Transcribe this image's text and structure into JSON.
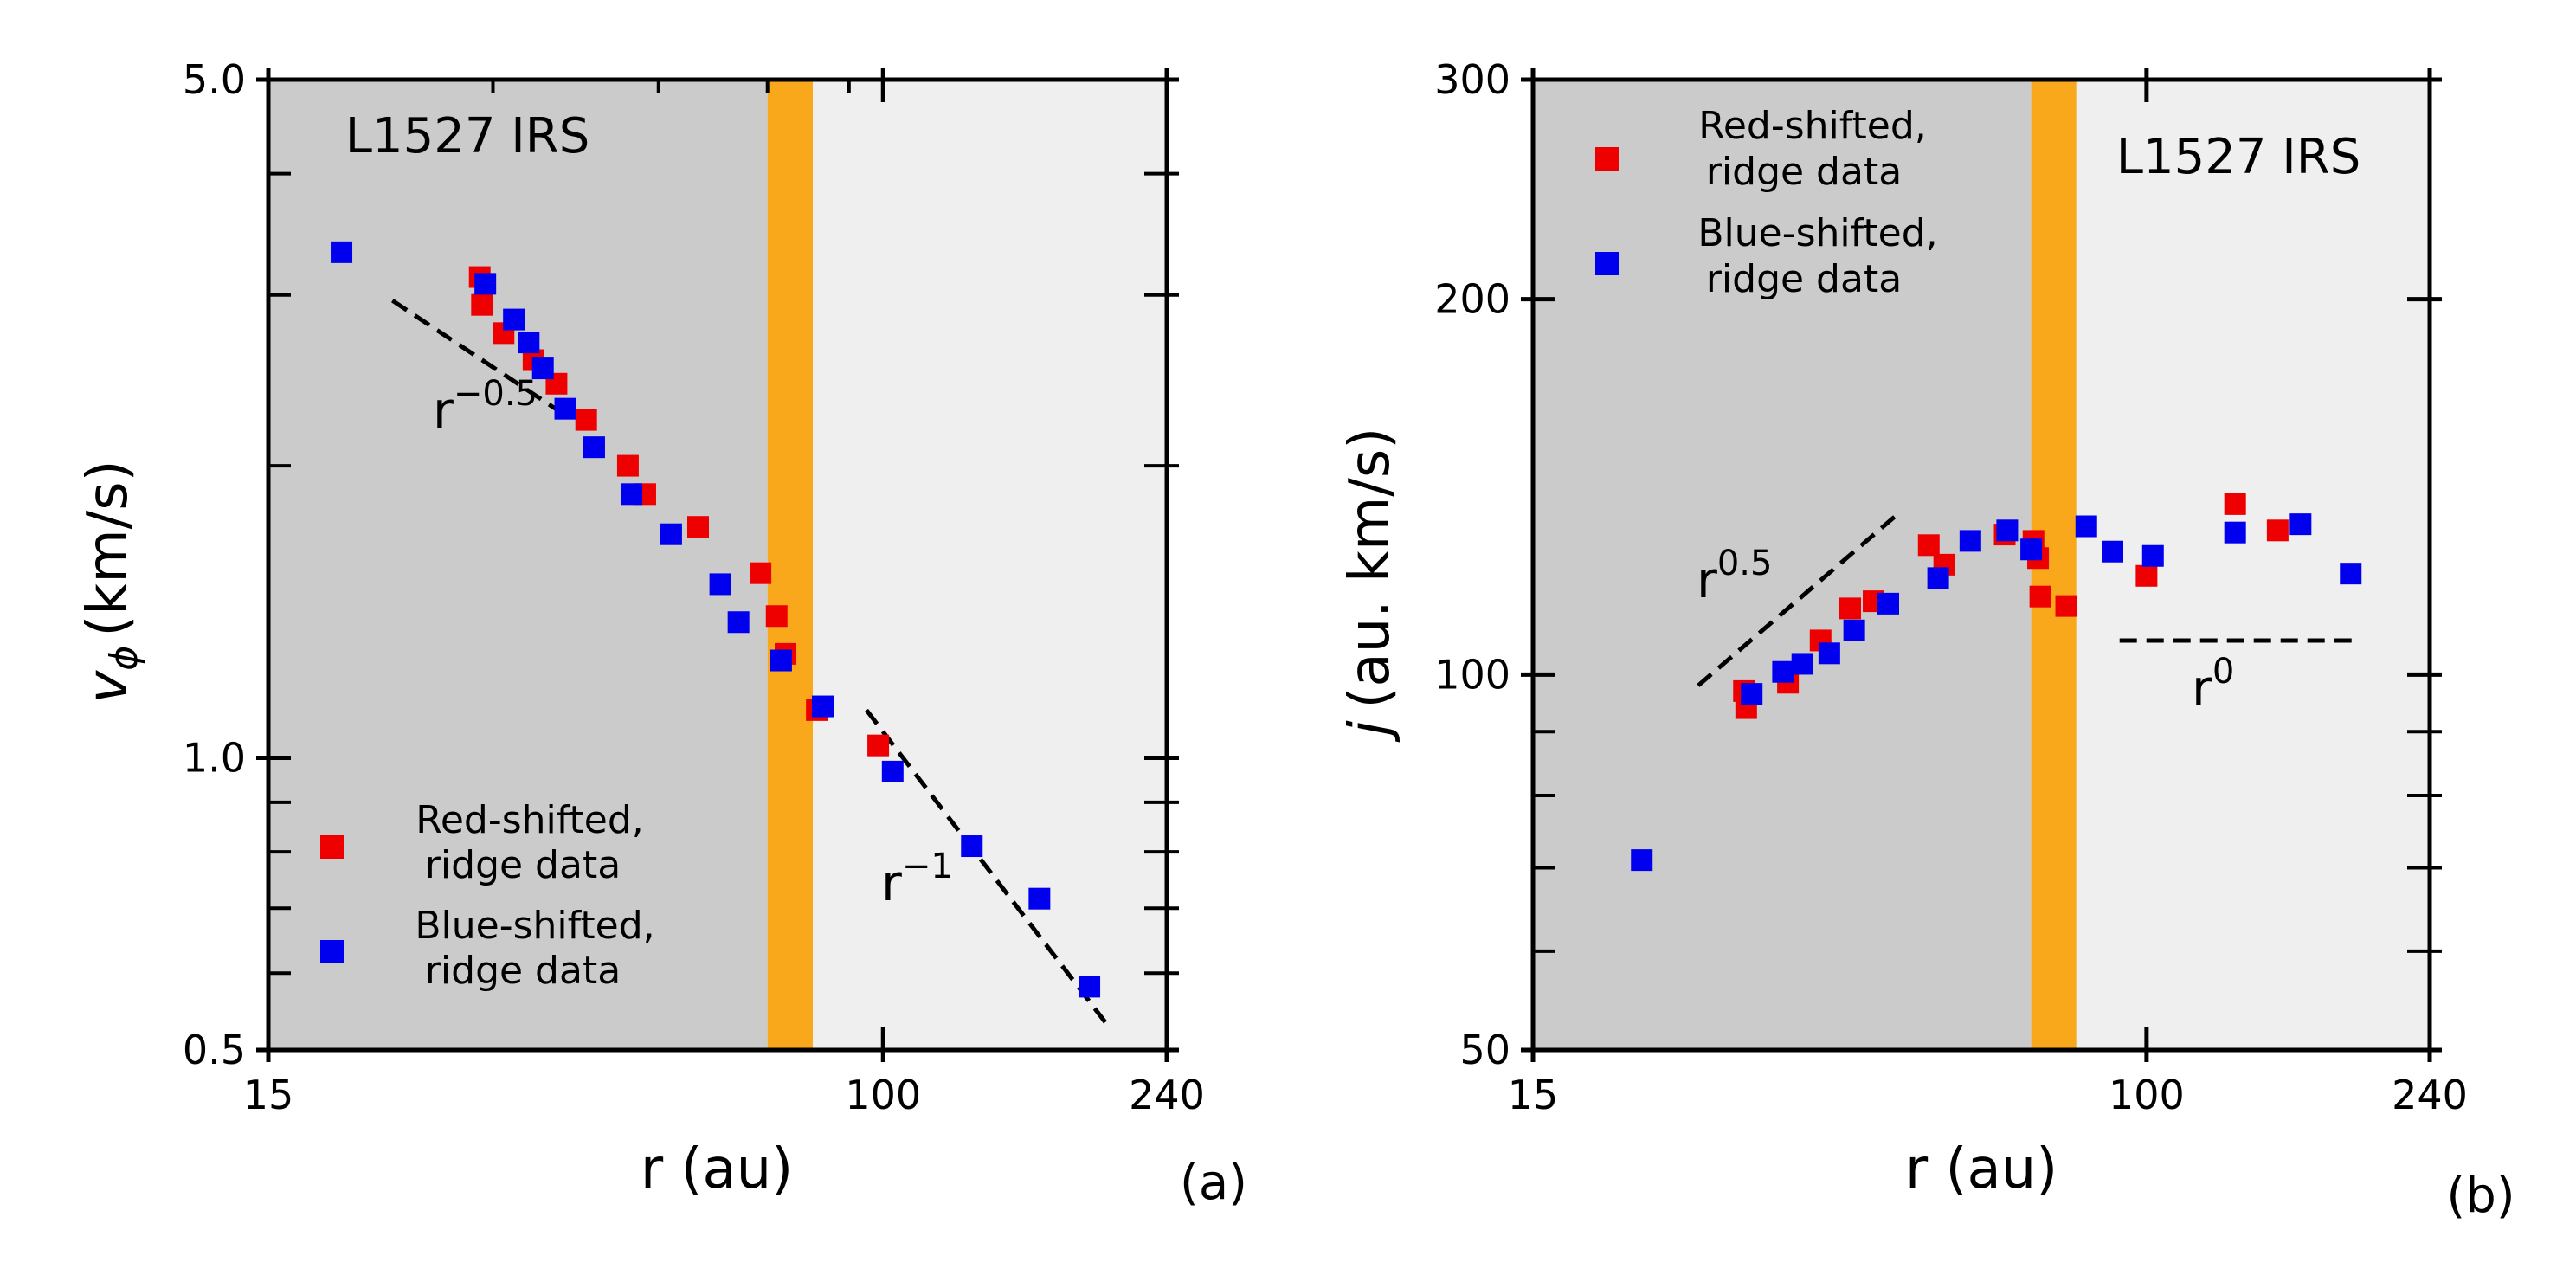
{
  "chart_data": [
    {
      "type": "scatter",
      "panel_label": "(a)",
      "region_label": "L1527 IRS",
      "xlabel": "r (au)",
      "ylabel_symbol": "v",
      "ylabel_sub": "ϕ",
      "ylabel_unit": "(km/s)",
      "xscale": "log",
      "yscale": "log",
      "xlim": [
        15,
        240
      ],
      "ylim": [
        0.5,
        5.0
      ],
      "xticks": [
        {
          "value": 15,
          "label": "15"
        },
        {
          "value": 100,
          "label": "100"
        },
        {
          "value": 240,
          "label": "240"
        }
      ],
      "yticks": [
        {
          "value": 0.5,
          "label": "0.5"
        },
        {
          "value": 1.0,
          "label": "1.0"
        },
        {
          "value": 5.0,
          "label": "5.0"
        }
      ],
      "yminor": [
        0.6,
        0.7,
        0.8,
        0.9,
        2,
        3,
        4
      ],
      "xminor_top": [
        30,
        50,
        70,
        90
      ],
      "shaded_regions": [
        {
          "from": 15,
          "to": 70,
          "color": "#cbcbcb"
        },
        {
          "from": 70,
          "to": 80.5,
          "color": "#f9a81c"
        },
        {
          "from": 80.5,
          "to": 240,
          "color": "#efefef"
        }
      ],
      "legend": {
        "position": "lower-left",
        "entries": [
          {
            "label_line1": "Red-shifted,",
            "label_line2": "ridge data",
            "color": "#ee0000"
          },
          {
            "label_line1": "Blue-shifted,",
            "label_line2": "ridge data",
            "color": "#0000ee"
          }
        ]
      },
      "series": [
        {
          "name": "Red-shifted, ridge data",
          "color": "#ee0000",
          "x": [
            28.8,
            29.0,
            31.0,
            34.0,
            36.5,
            40.0,
            45.5,
            48.0,
            56.5,
            68.5,
            72.0,
            74.0,
            81.5,
            98.5
          ],
          "y": [
            3.13,
            2.93,
            2.74,
            2.57,
            2.43,
            2.23,
            2.0,
            1.87,
            1.73,
            1.55,
            1.4,
            1.28,
            1.12,
            1.03
          ]
        },
        {
          "name": "Blue-shifted, ridge data",
          "color": "#0000ee",
          "x": [
            18.8,
            29.3,
            32.0,
            33.5,
            35.0,
            37.5,
            41.0,
            46.0,
            52.0,
            60.5,
            64.0,
            73.0,
            83.0,
            103.0,
            131.5,
            162.0,
            189.0
          ],
          "y": [
            3.32,
            3.08,
            2.83,
            2.68,
            2.52,
            2.29,
            2.09,
            1.87,
            1.7,
            1.51,
            1.38,
            1.26,
            1.13,
            0.968,
            0.811,
            0.716,
            0.581
          ]
        }
      ],
      "reference_lines": [
        {
          "label": "r",
          "exponent": "−0.5",
          "points": [
            [
              22,
              2.96
            ],
            [
              38,
              2.24
            ]
          ]
        },
        {
          "label": "r",
          "exponent": "−1",
          "points": [
            [
              95,
              1.12
            ],
            [
              200,
              0.53
            ]
          ]
        }
      ]
    },
    {
      "type": "scatter",
      "panel_label": "(b)",
      "region_label": "L1527 IRS",
      "xlabel": "r (au)",
      "ylabel_symbol": "j",
      "ylabel_unit": "(au. km/s)",
      "xscale": "log",
      "yscale": "log",
      "xlim": [
        15,
        240
      ],
      "ylim": [
        50,
        300
      ],
      "xticks": [
        {
          "value": 15,
          "label": "15"
        },
        {
          "value": 100,
          "label": "100"
        },
        {
          "value": 240,
          "label": "240"
        }
      ],
      "yticks": [
        {
          "value": 50,
          "label": "50"
        },
        {
          "value": 100,
          "label": "100"
        },
        {
          "value": 200,
          "label": "200"
        },
        {
          "value": 300,
          "label": "300"
        }
      ],
      "yminor": [
        60,
        70,
        80,
        90
      ],
      "xminor_top": [],
      "shaded_regions": [
        {
          "from": 15,
          "to": 70,
          "color": "#cbcbcb"
        },
        {
          "from": 70,
          "to": 80.5,
          "color": "#f9a81c"
        },
        {
          "from": 80.5,
          "to": 240,
          "color": "#efefef"
        }
      ],
      "legend": {
        "position": "upper-left",
        "entries": [
          {
            "label_line1": "Red-shifted,",
            "label_line2": "ridge data",
            "color": "#ee0000"
          },
          {
            "label_line1": "Blue-shifted,",
            "label_line2": "ridge data",
            "color": "#0000ee"
          }
        ]
      },
      "series": [
        {
          "name": "Red-shifted, ridge data",
          "color": "#ee0000",
          "x": [
            28.8,
            29.0,
            33.0,
            36.5,
            40.0,
            43.0,
            51.0,
            53.5,
            64.5,
            70.5,
            71.5,
            72.0,
            78.0,
            100.0,
            131.5,
            150.0
          ],
          "y": [
            97.0,
            94.0,
            98.5,
            106.5,
            113.0,
            114.5,
            127.0,
            122.5,
            129.5,
            128.0,
            124.0,
            115.5,
            113.5,
            120.0,
            137.0,
            130.5
          ]
        },
        {
          "name": "Blue-shifted, ridge data",
          "color": "#0000ee",
          "x": [
            21.0,
            29.5,
            32.5,
            34.5,
            37.5,
            40.5,
            45.0,
            52.5,
            58.0,
            65.0,
            70.0,
            83.0,
            90.0,
            102.0,
            131.5,
            161.0,
            188.0
          ],
          "y": [
            71.0,
            96.5,
            100.5,
            102.0,
            104.0,
            108.5,
            114.0,
            119.5,
            128.0,
            130.5,
            126.0,
            131.5,
            125.5,
            124.5,
            130.0,
            132.0,
            120.5
          ]
        }
      ],
      "reference_lines": [
        {
          "label": "r",
          "exponent": "0.5",
          "points": [
            [
              25,
              98
            ],
            [
              46,
              134
            ]
          ]
        },
        {
          "label": "r",
          "exponent": "0",
          "points": [
            [
              92,
              106.5
            ],
            [
              190,
              106.5
            ]
          ]
        }
      ]
    }
  ]
}
